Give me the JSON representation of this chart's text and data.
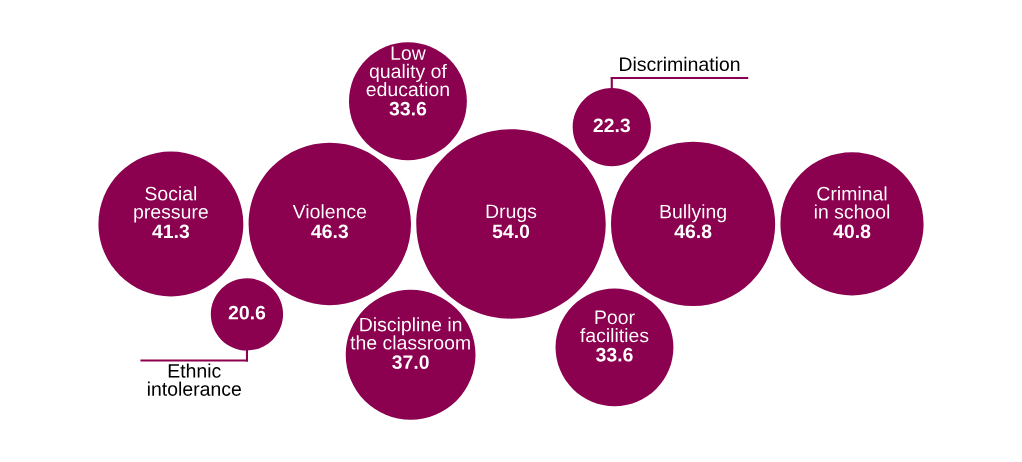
{
  "chart_data": {
    "type": "other",
    "color": "#8b004f",
    "categories": [
      "Low\nquality of\neducation",
      "Drugs",
      "Ethnic\nintolerance",
      "Bullying",
      "Violence",
      "Discipline in\nthe classroom",
      "Criminal\nin school",
      "Social\npressure",
      "Poor\nfacilities",
      "Discrimination"
    ],
    "values": [
      33.6,
      54.0,
      20.6,
      46.8,
      46.3,
      37.0,
      40.8,
      41.3,
      33.6,
      22.3
    ],
    "value_labels": [
      "33.6",
      "54.0",
      "20.6",
      "46.8",
      "46.3",
      "37.0",
      "40.8",
      "41.3",
      "33.6",
      "22.3"
    ]
  }
}
